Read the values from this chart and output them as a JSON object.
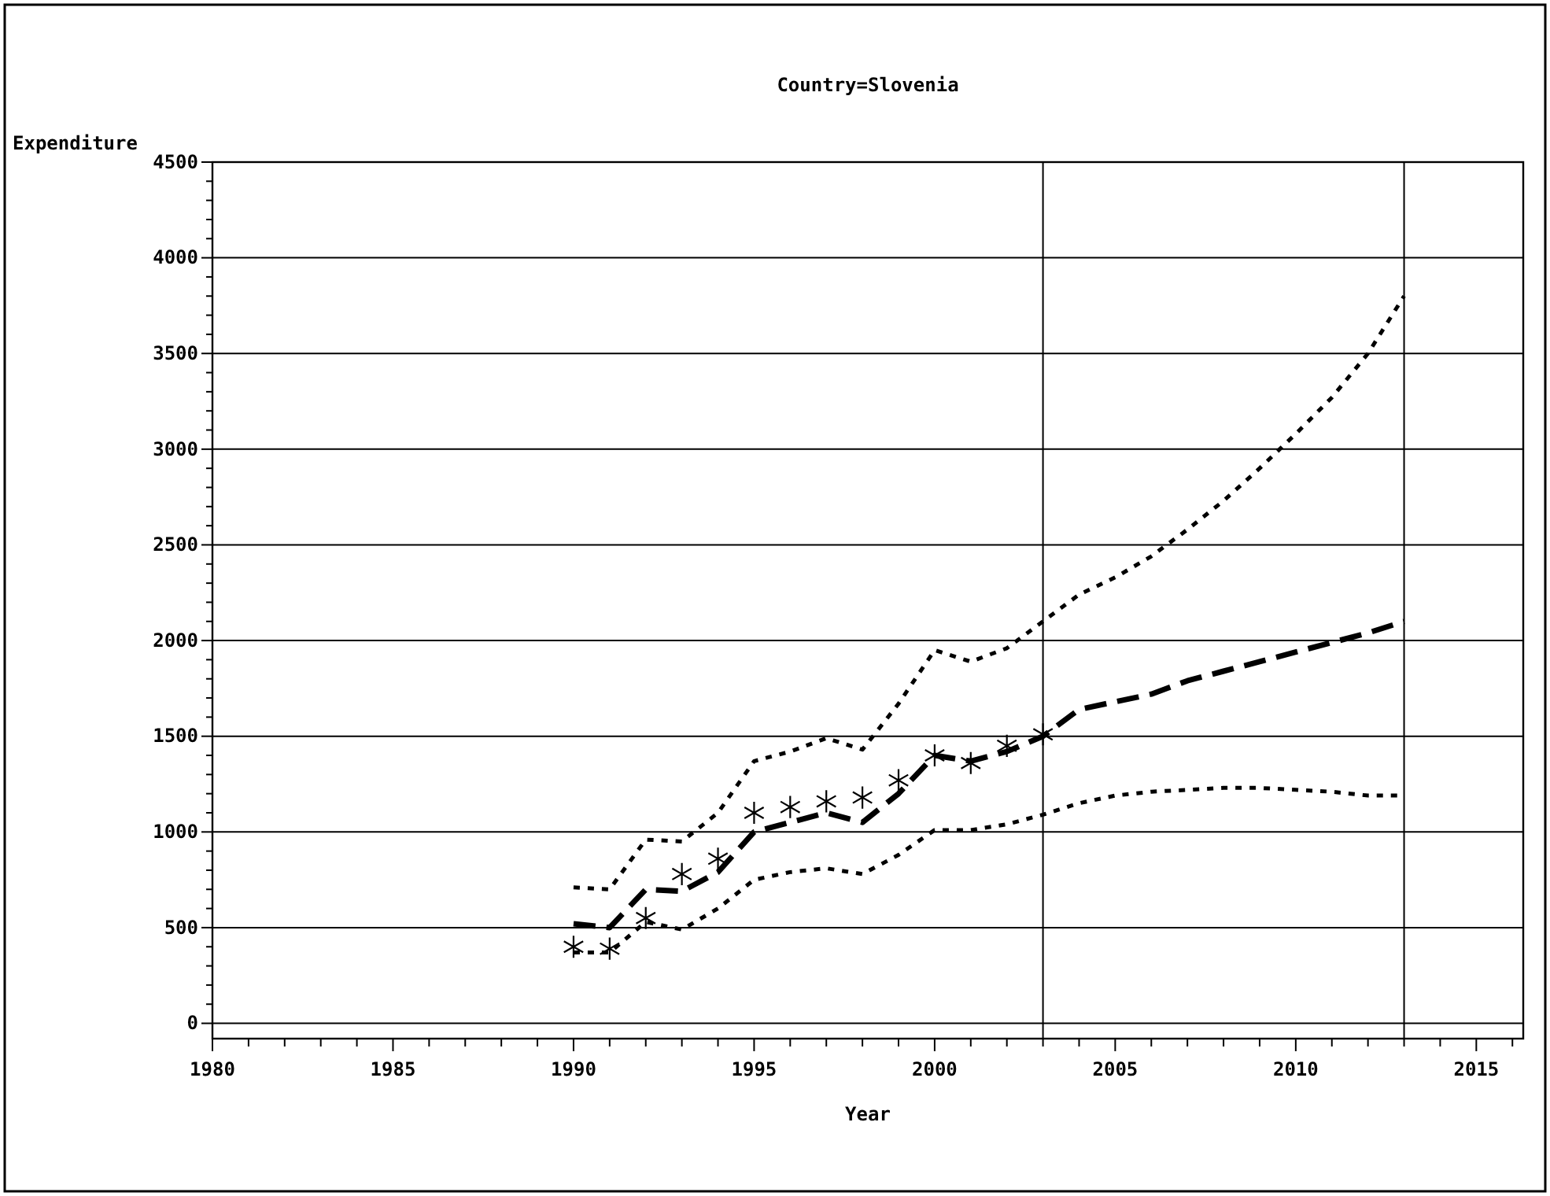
{
  "chart_data": {
    "type": "line",
    "title": "Country=Slovenia",
    "xlabel": "Year",
    "ylabel": "Expenditure",
    "x": [
      1990,
      1991,
      1992,
      1993,
      1994,
      1995,
      1996,
      1997,
      1998,
      1999,
      2000,
      2001,
      2002,
      2003,
      2004,
      2005,
      2006,
      2007,
      2008,
      2009,
      2010,
      2011,
      2012,
      2013
    ],
    "series": [
      {
        "color": "#000000",
        "line_style": "dashed",
        "marker": "none",
        "values": [
          520,
          500,
          700,
          690,
          790,
          1000,
          1050,
          1100,
          1050,
          1200,
          1400,
          1370,
          1420,
          1500,
          1640,
          1680,
          1720,
          1790,
          1840,
          1890,
          1940,
          1990,
          2040,
          2100
        ]
      },
      {
        "color": "#000000",
        "line_style": "dotted",
        "marker": "none",
        "values": [
          710,
          700,
          960,
          950,
          1100,
          1370,
          1420,
          1490,
          1430,
          1670,
          1950,
          1890,
          1960,
          2100,
          2240,
          2330,
          2440,
          2580,
          2730,
          2900,
          3080,
          3270,
          3500,
          3800
        ]
      },
      {
        "color": "#000000",
        "line_style": "dotted",
        "marker": "none",
        "values": [
          370,
          370,
          530,
          490,
          600,
          750,
          790,
          810,
          780,
          880,
          1010,
          1010,
          1040,
          1090,
          1150,
          1190,
          1210,
          1220,
          1230,
          1230,
          1220,
          1210,
          1190,
          1190
        ]
      },
      {
        "type": "scatter",
        "color": "#000000",
        "marker": "cross",
        "x": [
          1990,
          1991,
          1992,
          1993,
          1994,
          1995,
          1996,
          1997,
          1998,
          1999,
          2000,
          2001,
          2002,
          2003
        ],
        "values": [
          400,
          390,
          550,
          780,
          860,
          1100,
          1130,
          1160,
          1180,
          1270,
          1400,
          1360,
          1450,
          1510
        ]
      }
    ],
    "xlim": [
      1980,
      2016.3
    ],
    "ylim": [
      -80,
      4500
    ],
    "xticks": [
      1980,
      {
        "value": 1981,
        "label": null
      },
      {
        "value": 1982,
        "label": null
      },
      {
        "value": 1983,
        "label": null
      },
      {
        "value": 1984,
        "label": null
      },
      1985,
      {
        "value": 1986,
        "label": null
      },
      {
        "value": 1987,
        "label": null
      },
      {
        "value": 1988,
        "label": null
      },
      {
        "value": 1989,
        "label": null
      },
      1990,
      {
        "value": 1991,
        "label": null
      },
      {
        "value": 1992,
        "label": null
      },
      {
        "value": 1993,
        "label": null
      },
      {
        "value": 1994,
        "label": null
      },
      1995,
      {
        "value": 1996,
        "label": null
      },
      {
        "value": 1997,
        "label": null
      },
      {
        "value": 1998,
        "label": null
      },
      {
        "value": 1999,
        "label": null
      },
      2000,
      {
        "value": 2001,
        "label": null
      },
      {
        "value": 2002,
        "label": null
      },
      {
        "value": 2003,
        "label": null
      },
      {
        "value": 2004,
        "label": null
      },
      2005,
      {
        "value": 2006,
        "label": null
      },
      {
        "value": 2007,
        "label": null
      },
      {
        "value": 2008,
        "label": null
      },
      {
        "value": 2009,
        "label": null
      },
      2010,
      {
        "value": 2011,
        "label": null
      },
      {
        "value": 2012,
        "label": null
      },
      {
        "value": 2013,
        "label": null
      },
      {
        "value": 2014,
        "label": null
      },
      2015,
      {
        "value": 2016,
        "label": null
      }
    ],
    "yticks": [
      0,
      {
        "value": 100,
        "label": null
      },
      {
        "value": 200,
        "label": null
      },
      {
        "value": 300,
        "label": null
      },
      {
        "value": 400,
        "label": null
      },
      500,
      {
        "value": 600,
        "label": null
      },
      {
        "value": 700,
        "label": null
      },
      {
        "value": 800,
        "label": null
      },
      {
        "value": 900,
        "label": null
      },
      1000,
      {
        "value": 1100,
        "label": null
      },
      {
        "value": 1200,
        "label": null
      },
      {
        "value": 1300,
        "label": null
      },
      {
        "value": 1400,
        "label": null
      },
      1500,
      {
        "value": 1600,
        "label": null
      },
      {
        "value": 1700,
        "label": null
      },
      {
        "value": 1800,
        "label": null
      },
      {
        "value": 1900,
        "label": null
      },
      2000,
      {
        "value": 2100,
        "label": null
      },
      {
        "value": 2200,
        "label": null
      },
      {
        "value": 2300,
        "label": null
      },
      {
        "value": 2400,
        "label": null
      },
      2500,
      {
        "value": 2600,
        "label": null
      },
      {
        "value": 2700,
        "label": null
      },
      {
        "value": 2800,
        "label": null
      },
      {
        "value": 2900,
        "label": null
      },
      3000,
      {
        "value": 3100,
        "label": null
      },
      {
        "value": 3200,
        "label": null
      },
      {
        "value": 3300,
        "label": null
      },
      {
        "value": 3400,
        "label": null
      },
      3500,
      {
        "value": 3600,
        "label": null
      },
      {
        "value": 3700,
        "label": null
      },
      {
        "value": 3800,
        "label": null
      },
      {
        "value": 3900,
        "label": null
      },
      4000,
      {
        "value": 4100,
        "label": null
      },
      {
        "value": 4200,
        "label": null
      },
      {
        "value": 4300,
        "label": null
      },
      {
        "value": 4400,
        "label": null
      },
      4500
    ],
    "grid": "y",
    "ref_lines": [
      {
        "axis": "x",
        "value": 2003,
        "color": "#000000"
      },
      {
        "axis": "x",
        "value": 2013,
        "color": "#000000"
      }
    ]
  }
}
